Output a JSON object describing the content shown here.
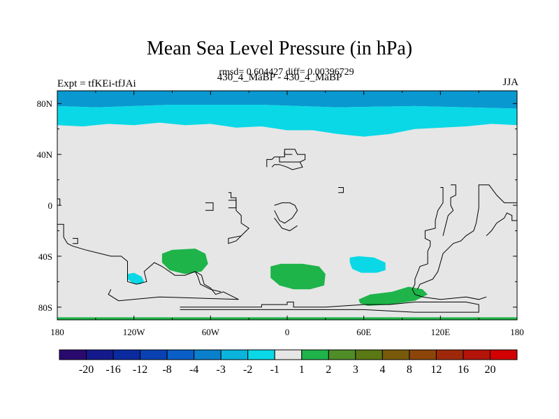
{
  "header": {
    "title": "Mean Sea Level Pressure (in hPa)",
    "subtitle": "rmsd= 0.604427 diff= 0.00396729",
    "left_label": "Expt = tfKEi-tfJAi",
    "center_label": "430_4_MaBP - 430_4_MaBP",
    "right_label": "JJA"
  },
  "axes": {
    "x_ticks": [
      {
        "value": -180,
        "label": "180"
      },
      {
        "value": -120,
        "label": "120W"
      },
      {
        "value": -60,
        "label": "60W"
      },
      {
        "value": 0,
        "label": "0"
      },
      {
        "value": 60,
        "label": "60E"
      },
      {
        "value": 120,
        "label": "120E"
      },
      {
        "value": 180,
        "label": "180"
      }
    ],
    "y_ticks": [
      {
        "value": 80,
        "label": "80N"
      },
      {
        "value": 40,
        "label": "40N"
      },
      {
        "value": 0,
        "label": "0"
      },
      {
        "value": -40,
        "label": "40S"
      },
      {
        "value": -80,
        "label": "80S"
      }
    ],
    "lon_range": [
      -180,
      180
    ],
    "lat_range": [
      -90,
      90
    ]
  },
  "colorbar": {
    "labels": [
      "-20",
      "-16",
      "-12",
      "-8",
      "-4",
      "-3",
      "-2",
      "-1",
      "1",
      "2",
      "3",
      "4",
      "8",
      "12",
      "16",
      "20"
    ],
    "colors": [
      "#2a0a6e",
      "#141a8c",
      "#0a2aa0",
      "#0a42b4",
      "#0a5ec8",
      "#0a80cc",
      "#0ab4dc",
      "#0ad8e6",
      "#e6e6e6",
      "#1eb44a",
      "#508c28",
      "#5a7814",
      "#785a0a",
      "#8c460a",
      "#a0280a",
      "#b4140a",
      "#d20000"
    ]
  },
  "map": {
    "background_color": "#e6e6e6",
    "fills": [
      {
        "name": "arctic-band-dark",
        "level": "-3 to -2",
        "color": "#0a98d0",
        "points": [
          [
            -180,
            90
          ],
          [
            180,
            90
          ],
          [
            180,
            76
          ],
          [
            100,
            78
          ],
          [
            40,
            77
          ],
          [
            -20,
            79
          ],
          [
            -90,
            79
          ],
          [
            -150,
            77
          ],
          [
            -180,
            78
          ]
        ]
      },
      {
        "name": "arctic-band-light",
        "level": "-2 to -1",
        "color": "#0ad8e6",
        "points": [
          [
            -180,
            78
          ],
          [
            -150,
            77
          ],
          [
            -90,
            79
          ],
          [
            -20,
            79
          ],
          [
            40,
            77
          ],
          [
            100,
            78
          ],
          [
            180,
            76
          ],
          [
            180,
            63
          ],
          [
            160,
            64
          ],
          [
            140,
            62
          ],
          [
            100,
            60
          ],
          [
            80,
            56
          ],
          [
            60,
            54
          ],
          [
            40,
            56
          ],
          [
            20,
            59
          ],
          [
            0,
            59
          ],
          [
            -20,
            62
          ],
          [
            -40,
            61
          ],
          [
            -60,
            64
          ],
          [
            -80,
            63
          ],
          [
            -100,
            65
          ],
          [
            -120,
            63
          ],
          [
            -140,
            64
          ],
          [
            -160,
            62
          ],
          [
            -180,
            63
          ]
        ]
      },
      {
        "name": "south-pacific-low",
        "level": "-2 to -1",
        "color": "#0ad8e6",
        "points": [
          [
            -125,
            -54
          ],
          [
            -120,
            -53
          ],
          [
            -114,
            -56
          ],
          [
            -112,
            -60
          ],
          [
            -115,
            -62
          ],
          [
            -121,
            -61
          ],
          [
            -125,
            -58
          ]
        ]
      },
      {
        "name": "south-indian-low",
        "level": "-2 to -1",
        "color": "#0ad8e6",
        "points": [
          [
            49,
            -41
          ],
          [
            56,
            -40
          ],
          [
            68,
            -41
          ],
          [
            77,
            -45
          ],
          [
            77,
            -51
          ],
          [
            70,
            -53
          ],
          [
            58,
            -53
          ],
          [
            51,
            -50
          ],
          [
            49,
            -45
          ]
        ]
      },
      {
        "name": "south-pacific-high",
        "level": "1 to 2",
        "color": "#1eb44a",
        "points": [
          [
            -98,
            -38
          ],
          [
            -90,
            -35
          ],
          [
            -72,
            -34
          ],
          [
            -64,
            -38
          ],
          [
            -62,
            -46
          ],
          [
            -67,
            -52
          ],
          [
            -80,
            -54
          ],
          [
            -92,
            -51
          ],
          [
            -98,
            -45
          ]
        ]
      },
      {
        "name": "south-atlantic-high",
        "level": "1 to 2",
        "color": "#1eb44a",
        "points": [
          [
            -13,
            -48
          ],
          [
            -5,
            -46
          ],
          [
            12,
            -46
          ],
          [
            25,
            -48
          ],
          [
            30,
            -54
          ],
          [
            29,
            -63
          ],
          [
            18,
            -66
          ],
          [
            5,
            -66
          ],
          [
            -6,
            -63
          ],
          [
            -13,
            -57
          ]
        ]
      },
      {
        "name": "south-indian-high",
        "level": "1 to 2",
        "color": "#1eb44a",
        "points": [
          [
            56,
            -74
          ],
          [
            65,
            -70
          ],
          [
            82,
            -68
          ],
          [
            95,
            -64
          ],
          [
            106,
            -66
          ],
          [
            110,
            -70
          ],
          [
            100,
            -75
          ],
          [
            80,
            -78
          ],
          [
            63,
            -79
          ],
          [
            57,
            -77
          ]
        ]
      },
      {
        "name": "antarctic-edge",
        "level": "1 to 2",
        "color": "#1eb44a",
        "points": [
          [
            -180,
            -88
          ],
          [
            180,
            -88
          ],
          [
            180,
            -90
          ],
          [
            -180,
            -90
          ]
        ]
      }
    ],
    "outlines": [
      {
        "name": "continent-outline-west",
        "points": [
          [
            -180,
            5
          ],
          [
            -178,
            5
          ],
          [
            -178,
            0
          ],
          [
            -180,
            0
          ]
        ]
      },
      {
        "name": "continent-outline-south-america",
        "points": [
          [
            -180,
            -15
          ],
          [
            -175,
            -15
          ],
          [
            -175,
            -25
          ],
          [
            -172,
            -30
          ],
          [
            -168,
            -32
          ],
          [
            -158,
            -35
          ],
          [
            -138,
            -40
          ],
          [
            -130,
            -40
          ],
          [
            -125,
            -44
          ],
          [
            -125,
            -60
          ],
          [
            -118,
            -62
          ],
          [
            -110,
            -60
          ],
          [
            -112,
            -52
          ],
          [
            -104,
            -45
          ],
          [
            -98,
            -48
          ],
          [
            -88,
            -55
          ],
          [
            -80,
            -55
          ],
          [
            -72,
            -52
          ],
          [
            -67,
            -55
          ],
          [
            -65,
            -62
          ],
          [
            -60,
            -65
          ],
          [
            -56,
            -70
          ],
          [
            -50,
            -68
          ],
          [
            -42,
            -72
          ],
          [
            -38,
            -74
          ],
          [
            -100,
            -72
          ],
          [
            -132,
            -75
          ],
          [
            -140,
            -70
          ],
          [
            -138,
            -66
          ]
        ]
      },
      {
        "name": "continent-outline-andes",
        "points": [
          [
            -72,
            -52
          ],
          [
            -70,
            -56
          ],
          [
            -68,
            -62
          ],
          [
            -60,
            -66
          ],
          [
            -52,
            -68
          ]
        ]
      },
      {
        "name": "continent-outline-antarctic",
        "points": [
          [
            -84,
            -80
          ],
          [
            -20,
            -80
          ],
          [
            -20,
            -78
          ],
          [
            0,
            -78
          ],
          [
            0,
            -76
          ],
          [
            5,
            -76
          ],
          [
            5,
            -80
          ],
          [
            30,
            -80
          ],
          [
            60,
            -78
          ],
          [
            80,
            -78
          ],
          [
            100,
            -76
          ],
          [
            120,
            -76
          ],
          [
            140,
            -76
          ],
          [
            150,
            -78
          ],
          [
            150,
            -84
          ],
          [
            120,
            -84
          ],
          [
            100,
            -84
          ],
          [
            60,
            -82
          ],
          [
            30,
            -82
          ],
          [
            -20,
            -82
          ],
          [
            -84,
            -82
          ]
        ]
      },
      {
        "name": "continent-outline-africa-1",
        "points": [
          [
            -46,
            10
          ],
          [
            -44,
            10
          ],
          [
            -44,
            6
          ],
          [
            -40,
            6
          ],
          [
            -40,
            -4
          ],
          [
            -36,
            -8
          ],
          [
            -36,
            -14
          ],
          [
            -30,
            -18
          ],
          [
            -40,
            -28
          ],
          [
            -46,
            -30
          ],
          [
            -46,
            -26
          ],
          [
            -36,
            -24
          ],
          [
            -32,
            -20
          ]
        ]
      },
      {
        "name": "continent-outline-africa-2",
        "points": [
          [
            -10,
            0
          ],
          [
            -4,
            2
          ],
          [
            2,
            2
          ],
          [
            6,
            0
          ],
          [
            8,
            -4
          ],
          [
            4,
            -10
          ],
          [
            -2,
            -14
          ],
          [
            -6,
            -12
          ],
          [
            -10,
            -4
          ]
        ]
      },
      {
        "name": "continent-outline-africa-3",
        "points": [
          [
            -10,
            -10
          ],
          [
            -4,
            -18
          ],
          [
            2,
            -20
          ],
          [
            8,
            -16
          ]
        ]
      },
      {
        "name": "continent-outline-europe",
        "points": [
          [
            -16,
            30
          ],
          [
            -16,
            36
          ],
          [
            -12,
            36
          ],
          [
            -10,
            38
          ],
          [
            -2,
            38
          ],
          [
            -2,
            44
          ],
          [
            6,
            44
          ],
          [
            8,
            40
          ],
          [
            14,
            40
          ],
          [
            14,
            36
          ],
          [
            10,
            34
          ],
          [
            12,
            30
          ],
          [
            4,
            28
          ],
          [
            0,
            30
          ],
          [
            -6,
            32
          ],
          [
            -10,
            32
          ],
          [
            -12,
            30
          ]
        ]
      },
      {
        "name": "continent-outline-island-1",
        "points": [
          [
            -46,
            4
          ],
          [
            -40,
            4
          ],
          [
            -40,
            -2
          ],
          [
            -46,
            -2
          ]
        ]
      },
      {
        "name": "continent-outline-island-2",
        "points": [
          [
            -64,
            2
          ],
          [
            -58,
            2
          ],
          [
            -58,
            -4
          ],
          [
            -64,
            -4
          ]
        ]
      },
      {
        "name": "continent-outline-island-3",
        "points": [
          [
            40,
            14
          ],
          [
            44,
            14
          ],
          [
            44,
            10
          ],
          [
            40,
            10
          ]
        ]
      },
      {
        "name": "continent-outline-island-4",
        "points": [
          [
            -168,
            -26
          ],
          [
            -164,
            -26
          ],
          [
            -164,
            -30
          ],
          [
            -168,
            -30
          ]
        ]
      },
      {
        "name": "continent-outline-asia",
        "points": [
          [
            120,
            14
          ],
          [
            122,
            14
          ],
          [
            122,
            2
          ],
          [
            118,
            -4
          ],
          [
            116,
            -12
          ],
          [
            116,
            -18
          ],
          [
            108,
            -20
          ],
          [
            108,
            -26
          ],
          [
            112,
            -28
          ],
          [
            112,
            -32
          ],
          [
            110,
            -36
          ],
          [
            110,
            -46
          ],
          [
            104,
            -48
          ],
          [
            100,
            -58
          ],
          [
            100,
            -62
          ],
          [
            98,
            -66
          ],
          [
            100,
            -70
          ],
          [
            106,
            -72
          ],
          [
            120,
            -74
          ],
          [
            140,
            -72
          ],
          [
            150,
            -74
          ],
          [
            156,
            -72
          ]
        ]
      },
      {
        "name": "continent-outline-asia-2",
        "points": [
          [
            128,
            16
          ],
          [
            132,
            16
          ],
          [
            132,
            8
          ],
          [
            128,
            6
          ],
          [
            128,
            0
          ],
          [
            130,
            -4
          ],
          [
            126,
            -8
          ],
          [
            124,
            -16
          ],
          [
            122,
            -24
          ]
        ]
      },
      {
        "name": "continent-outline-pacific-east",
        "points": [
          [
            180,
            2
          ],
          [
            170,
            2
          ],
          [
            164,
            8
          ],
          [
            158,
            16
          ],
          [
            150,
            16
          ],
          [
            150,
            -2
          ],
          [
            148,
            -14
          ],
          [
            146,
            -20
          ],
          [
            140,
            -24
          ],
          [
            136,
            -28
          ],
          [
            130,
            -30
          ],
          [
            122,
            -38
          ],
          [
            118,
            -52
          ],
          [
            114,
            -58
          ],
          [
            104,
            -62
          ],
          [
            102,
            -66
          ]
        ]
      },
      {
        "name": "continent-outline-pacific-east-2",
        "points": [
          [
            180,
            -12
          ],
          [
            176,
            -12
          ],
          [
            176,
            -8
          ],
          [
            172,
            -6
          ],
          [
            170,
            -10
          ],
          [
            164,
            -14
          ],
          [
            160,
            -20
          ],
          [
            156,
            -24
          ]
        ]
      },
      {
        "name": "continent-outline-north-1",
        "points": [
          [
            -6,
            38
          ],
          [
            -6,
            34
          ],
          [
            10,
            34
          ]
        ]
      },
      {
        "name": "continent-outline-north-2",
        "points": [
          [
            -2,
            42
          ],
          [
            -2,
            40
          ],
          [
            4,
            40
          ]
        ]
      }
    ]
  }
}
